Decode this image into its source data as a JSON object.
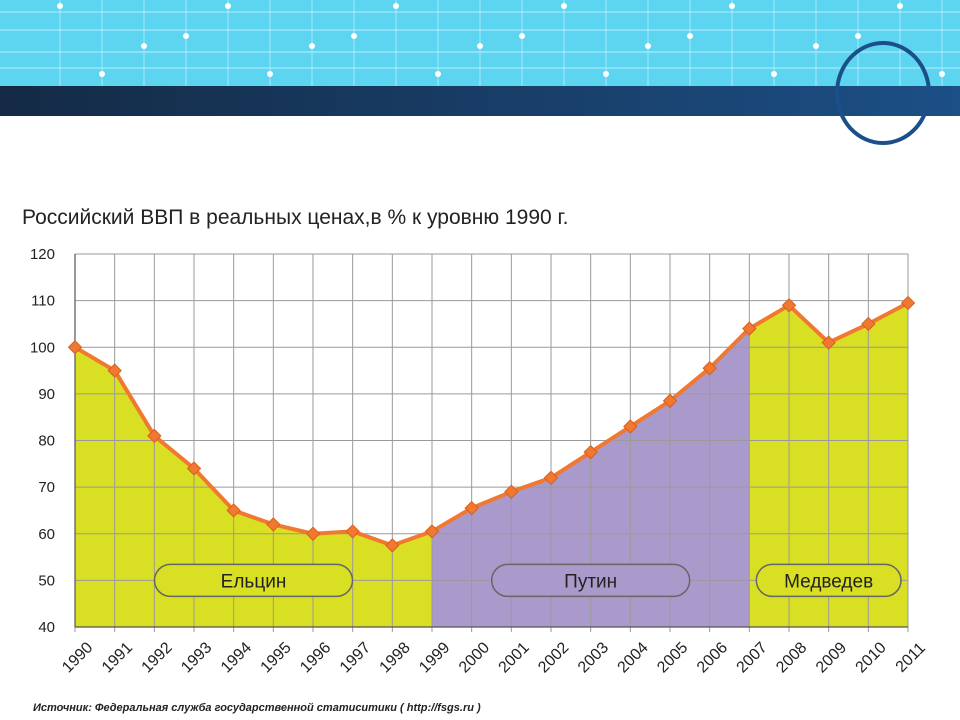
{
  "slide": {
    "colors": {
      "banner": "#5dd5f0",
      "stripe": "#1a3d66",
      "circle": "#1a4f8a"
    }
  },
  "chart_data": {
    "type": "line",
    "title": "Российский ВВП в реальных ценах,в % к уровню 1990 г.",
    "xlabel": "",
    "ylabel": "",
    "ylim": [
      40,
      120
    ],
    "yticks": [
      40,
      50,
      60,
      70,
      80,
      90,
      100,
      110,
      120
    ],
    "grid": true,
    "categories": [
      "1990",
      "1991",
      "1992",
      "1993",
      "1994",
      "1995",
      "1996",
      "1997",
      "1998",
      "1999",
      "2000",
      "2001",
      "2002",
      "2003",
      "2004",
      "2005",
      "2006",
      "2007",
      "2008",
      "2009",
      "2010",
      "2011"
    ],
    "series": [
      {
        "values": [
          100,
          95,
          81,
          74,
          65,
          62,
          60,
          60.5,
          57.5,
          60.5,
          65.5,
          69,
          72,
          77.5,
          83,
          88.5,
          95.5,
          104,
          109,
          101,
          105,
          109.5
        ],
        "color": "#f07830"
      }
    ],
    "eras": [
      {
        "label": "Ельцин",
        "from": "1990",
        "to": "1999",
        "color": "#d9df22"
      },
      {
        "label": "Путин",
        "from": "1999",
        "to": "2007",
        "color": "#a99acb"
      },
      {
        "label": "Медведев",
        "from": "2007",
        "to": "2011",
        "color": "#d9df22"
      }
    ],
    "source": "Источник:  Федеральная служба государственной статиситики ( http://fsgs.ru )"
  }
}
